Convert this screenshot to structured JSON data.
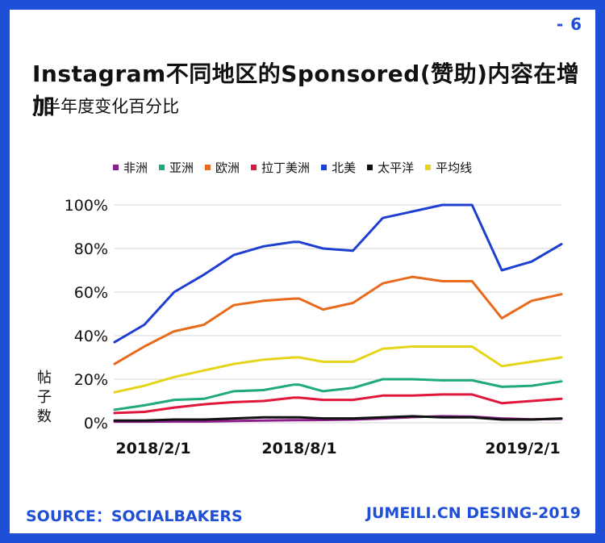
{
  "page_number": "- 6",
  "title": "Instagram不同地区的Sponsored(赞助)内容在增加",
  "subtitle": "||半年度变化百分比",
  "footer": {
    "source": "SOURCE：SOCIALBAKERS",
    "credit": "JUMEILI.CN DESING-2019"
  },
  "colors": {
    "frame": "#1f4fd6",
    "footer_text": "#1f4fd6"
  },
  "chart_data": {
    "type": "line",
    "title": "",
    "ylabel": "帖子数",
    "xlabel": "",
    "x_tick_labels": [
      "2018/2/1",
      "2018/8/1",
      "2019/2/1"
    ],
    "x_tick_indices": [
      0,
      6,
      12
    ],
    "y_ticks": [
      0,
      20,
      40,
      60,
      80,
      100
    ],
    "y_tick_labels": [
      "0%",
      "20%",
      "40%",
      "60%",
      "80%",
      "100%"
    ],
    "ylim": [
      0,
      100
    ],
    "x_count": 13,
    "grid": true,
    "legend_position": "top",
    "series": [
      {
        "name": "非洲",
        "color": "#8e1d8e",
        "x": [
          0,
          1,
          2,
          3,
          4,
          5,
          6,
          6.2,
          7,
          8,
          9,
          10,
          11,
          12,
          13,
          14,
          15
        ],
        "values": [
          0.5,
          0.5,
          0.6,
          0.6,
          0.8,
          1.0,
          1.2,
          1.2,
          1.3,
          1.5,
          2.0,
          2.6,
          3.0,
          2.8,
          2.0,
          1.6,
          1.8
        ]
      },
      {
        "name": "亚洲",
        "color": "#1faa7a",
        "x": [
          0,
          1,
          2,
          3,
          4,
          5,
          6,
          6.2,
          7,
          8,
          9,
          10,
          11,
          12,
          13,
          14,
          15
        ],
        "values": [
          6,
          8,
          10.5,
          11,
          14.5,
          15,
          17.5,
          17.5,
          14.5,
          16,
          20,
          20,
          19.5,
          19.5,
          16.5,
          17,
          19
        ]
      },
      {
        "name": "欧洲",
        "color": "#e86a1c",
        "x": [
          0,
          1,
          2,
          3,
          4,
          5,
          6,
          6.2,
          7,
          8,
          9,
          10,
          11,
          12,
          13,
          14,
          15
        ],
        "values": [
          27,
          35,
          42,
          45,
          54,
          56,
          57,
          57,
          52,
          55,
          64,
          67,
          65,
          65,
          48,
          56,
          59
        ]
      },
      {
        "name": "拉丁美洲",
        "color": "#e0163a",
        "x": [
          0,
          1,
          2,
          3,
          4,
          5,
          6,
          6.2,
          7,
          8,
          9,
          10,
          11,
          12,
          13,
          14,
          15
        ],
        "values": [
          4.5,
          5,
          7,
          8.5,
          9.5,
          10,
          11.5,
          11.5,
          10.5,
          10.5,
          12.5,
          12.5,
          13,
          13,
          9,
          10,
          11
        ]
      },
      {
        "name": "北美",
        "color": "#1f3fd0",
        "x": [
          0,
          1,
          2,
          3,
          4,
          5,
          6,
          6.2,
          7,
          8,
          9,
          10,
          11,
          12,
          13,
          14,
          15
        ],
        "values": [
          37,
          45,
          60,
          68,
          77,
          81,
          83,
          83,
          80,
          79,
          94,
          97,
          100,
          100,
          70,
          74,
          82
        ]
      },
      {
        "name": "太平洋",
        "color": "#111111",
        "x": [
          0,
          1,
          2,
          3,
          4,
          5,
          6,
          6.2,
          7,
          8,
          9,
          10,
          11,
          12,
          13,
          14,
          15
        ],
        "values": [
          1,
          1,
          1.5,
          1.5,
          2,
          2.5,
          2.5,
          2.5,
          2,
          2,
          2.5,
          3,
          2.5,
          2.5,
          1.5,
          1.5,
          2
        ]
      },
      {
        "name": "平均线",
        "color": "#e5d51a",
        "x": [
          0,
          1,
          2,
          3,
          4,
          5,
          6,
          6.2,
          7,
          8,
          9,
          10,
          11,
          12,
          13,
          14,
          15
        ],
        "values": [
          14,
          17,
          21,
          24,
          27,
          29,
          30,
          30,
          28,
          28,
          34,
          35,
          35,
          35,
          26,
          28,
          30
        ]
      }
    ]
  }
}
